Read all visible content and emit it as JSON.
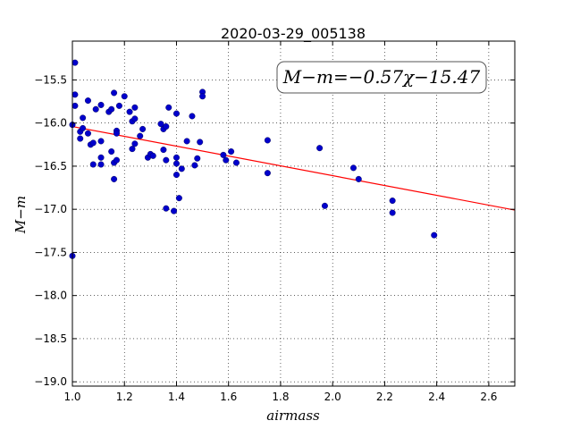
{
  "chart_data": {
    "type": "scatter",
    "title": "2020-03-29_005138",
    "xlabel": "airmass",
    "ylabel": "M−m",
    "annotation": "M−m=−0.57χ−15.47",
    "xlim": [
      1.0,
      2.7
    ],
    "ylim": [
      -19.05,
      -15.05
    ],
    "xticks": [
      "1.0",
      "1.2",
      "1.4",
      "1.6",
      "1.8",
      "2.0",
      "2.2",
      "2.4",
      "2.6"
    ],
    "xtick_values": [
      1.0,
      1.2,
      1.4,
      1.6,
      1.8,
      2.0,
      2.2,
      2.4,
      2.6
    ],
    "yticks": [
      "−15.5",
      "−16.0",
      "−16.5",
      "−17.0",
      "−17.5",
      "−18.0",
      "−18.5",
      "−19.0"
    ],
    "ytick_values": [
      -15.5,
      -16.0,
      -16.5,
      -17.0,
      -17.5,
      -18.0,
      -18.5,
      -19.0
    ],
    "grid": true,
    "colors": {
      "points": "#0000cc",
      "fit_line": "#ff0000"
    },
    "fit": {
      "slope": -0.57,
      "intercept": -15.47
    },
    "series": [
      {
        "points": [
          [
            1.0,
            -16.02
          ],
          [
            1.0,
            -17.54
          ],
          [
            1.01,
            -15.3
          ],
          [
            1.01,
            -15.67
          ],
          [
            1.01,
            -15.8
          ],
          [
            1.03,
            -16.18
          ],
          [
            1.03,
            -16.1
          ],
          [
            1.04,
            -15.94
          ],
          [
            1.04,
            -16.06
          ],
          [
            1.06,
            -15.74
          ],
          [
            1.06,
            -16.12
          ],
          [
            1.07,
            -16.25
          ],
          [
            1.08,
            -16.23
          ],
          [
            1.08,
            -16.48
          ],
          [
            1.09,
            -15.84
          ],
          [
            1.11,
            -15.79
          ],
          [
            1.11,
            -16.21
          ],
          [
            1.11,
            -16.4
          ],
          [
            1.11,
            -16.48
          ],
          [
            1.14,
            -15.87
          ],
          [
            1.15,
            -15.84
          ],
          [
            1.15,
            -16.33
          ],
          [
            1.16,
            -16.46
          ],
          [
            1.16,
            -16.65
          ],
          [
            1.16,
            -15.65
          ],
          [
            1.17,
            -16.09
          ],
          [
            1.17,
            -16.12
          ],
          [
            1.17,
            -16.43
          ],
          [
            1.18,
            -15.8
          ],
          [
            1.2,
            -15.69
          ],
          [
            1.22,
            -15.87
          ],
          [
            1.23,
            -15.98
          ],
          [
            1.23,
            -16.3
          ],
          [
            1.24,
            -15.82
          ],
          [
            1.24,
            -15.95
          ],
          [
            1.24,
            -16.24
          ],
          [
            1.26,
            -16.15
          ],
          [
            1.27,
            -16.07
          ],
          [
            1.29,
            -16.4
          ],
          [
            1.3,
            -16.36
          ],
          [
            1.31,
            -16.38
          ],
          [
            1.34,
            -16.01
          ],
          [
            1.35,
            -16.07
          ],
          [
            1.35,
            -16.31
          ],
          [
            1.36,
            -16.04
          ],
          [
            1.36,
            -16.43
          ],
          [
            1.36,
            -16.99
          ],
          [
            1.37,
            -15.82
          ],
          [
            1.39,
            -17.02
          ],
          [
            1.4,
            -15.89
          ],
          [
            1.4,
            -16.4
          ],
          [
            1.4,
            -16.47
          ],
          [
            1.4,
            -16.6
          ],
          [
            1.41,
            -16.87
          ],
          [
            1.42,
            -16.53
          ],
          [
            1.44,
            -16.21
          ],
          [
            1.46,
            -15.92
          ],
          [
            1.47,
            -16.49
          ],
          [
            1.48,
            -16.41
          ],
          [
            1.49,
            -16.22
          ],
          [
            1.5,
            -15.64
          ],
          [
            1.5,
            -15.69
          ],
          [
            1.58,
            -16.37
          ],
          [
            1.59,
            -16.43
          ],
          [
            1.61,
            -16.33
          ],
          [
            1.63,
            -16.46
          ],
          [
            1.75,
            -16.2
          ],
          [
            1.75,
            -16.58
          ],
          [
            1.95,
            -16.29
          ],
          [
            1.97,
            -16.96
          ],
          [
            2.08,
            -16.52
          ],
          [
            2.1,
            -16.65
          ],
          [
            2.23,
            -16.9
          ],
          [
            2.23,
            -17.04
          ],
          [
            2.39,
            -17.3
          ]
        ]
      }
    ]
  }
}
